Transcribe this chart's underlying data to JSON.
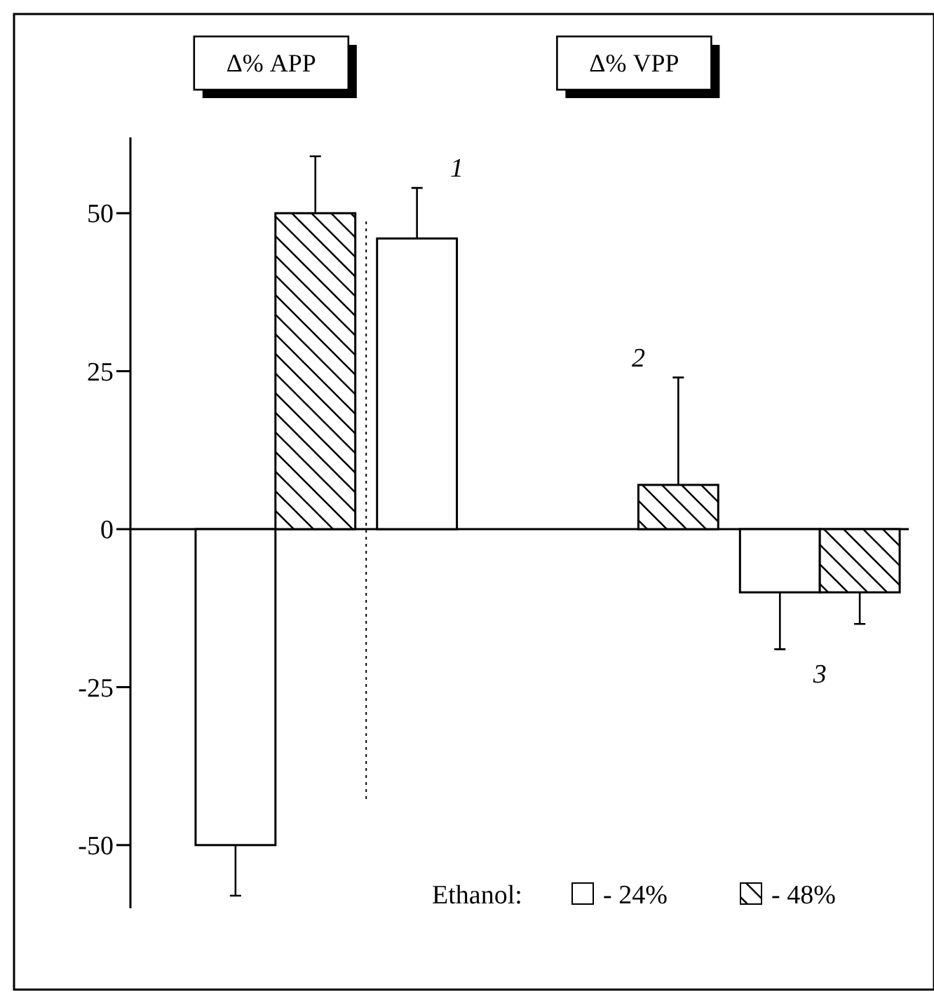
{
  "chart_data": {
    "type": "bar",
    "categories": [
      null,
      null,
      null,
      null
    ],
    "series": [
      {
        "name": "- 24%",
        "color": "#ffffff",
        "values": [
          -50,
          46,
          null,
          -10
        ],
        "errors": [
          8,
          8,
          null,
          9
        ]
      },
      {
        "name": "- 48%",
        "color": "#000000",
        "values": [
          50,
          null,
          7,
          -10
        ],
        "errors": [
          9,
          null,
          17,
          5
        ]
      }
    ],
    "legend_title": "Ethanol:",
    "legend": "bottom right",
    "annotations": [
      "Δ% APP",
      "Δ% VPP",
      "1",
      "2",
      "3"
    ],
    "ylim": [
      -60,
      62
    ],
    "yticks": [
      -50,
      -25,
      0,
      25,
      50
    ]
  }
}
